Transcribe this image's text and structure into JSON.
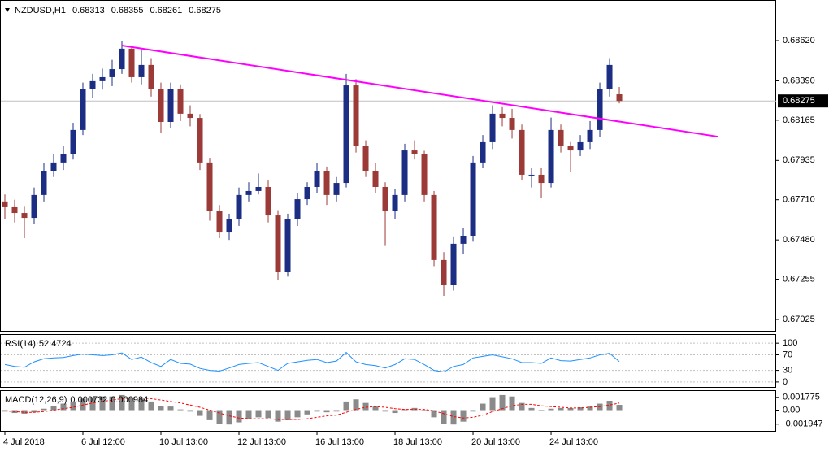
{
  "chart_data": [
    {
      "type": "candlestick",
      "symbol": "NZDUSD,H1",
      "up_color": "#1c2d84",
      "down_color": "#9b3a36",
      "candles": [
        [
          0.677,
          0.6774,
          0.676,
          0.67667
        ],
        [
          0.67667,
          0.6771,
          0.6758,
          0.67634
        ],
        [
          0.67634,
          0.6767,
          0.6749,
          0.67606
        ],
        [
          0.67606,
          0.6778,
          0.6757,
          0.67737
        ],
        [
          0.67737,
          0.6792,
          0.677,
          0.67876
        ],
        [
          0.67876,
          0.6797,
          0.6784,
          0.67923
        ],
        [
          0.67923,
          0.6802,
          0.6788,
          0.67969
        ],
        [
          0.67969,
          0.6815,
          0.6794,
          0.68109
        ],
        [
          0.68109,
          0.6838,
          0.6808,
          0.68341
        ],
        [
          0.68341,
          0.6843,
          0.6829,
          0.68388
        ],
        [
          0.68388,
          0.6846,
          0.6834,
          0.68411
        ],
        [
          0.68411,
          0.6851,
          0.6836,
          0.68457
        ],
        [
          0.68457,
          0.6862,
          0.6843,
          0.68574
        ],
        [
          0.68574,
          0.6859,
          0.6838,
          0.68411
        ],
        [
          0.68411,
          0.6857,
          0.6837,
          0.68481
        ],
        [
          0.68481,
          0.6852,
          0.683,
          0.68341
        ],
        [
          0.68341,
          0.6838,
          0.6809,
          0.68155
        ],
        [
          0.68155,
          0.6838,
          0.6812,
          0.68341
        ],
        [
          0.68341,
          0.6837,
          0.6816,
          0.68202
        ],
        [
          0.68202,
          0.6825,
          0.6813,
          0.68178
        ],
        [
          0.68178,
          0.682,
          0.6788,
          0.67923
        ],
        [
          0.67923,
          0.6795,
          0.6759,
          0.67644
        ],
        [
          0.67644,
          0.6768,
          0.6749,
          0.67527
        ],
        [
          0.67527,
          0.6763,
          0.6748,
          0.67597
        ],
        [
          0.67597,
          0.6778,
          0.6756,
          0.67737
        ],
        [
          0.67737,
          0.6781,
          0.677,
          0.6776
        ],
        [
          0.6776,
          0.6786,
          0.6774,
          0.67783
        ],
        [
          0.67783,
          0.6782,
          0.6758,
          0.6762
        ],
        [
          0.6762,
          0.6765,
          0.6725,
          0.67295
        ],
        [
          0.67295,
          0.6763,
          0.6727,
          0.67597
        ],
        [
          0.67597,
          0.6775,
          0.6756,
          0.67713
        ],
        [
          0.67713,
          0.6781,
          0.6768,
          0.67783
        ],
        [
          0.67783,
          0.6792,
          0.6775,
          0.67876
        ],
        [
          0.67876,
          0.679,
          0.6768,
          0.67737
        ],
        [
          0.67737,
          0.6784,
          0.677,
          0.67806
        ],
        [
          0.67806,
          0.6843,
          0.6778,
          0.68364
        ],
        [
          0.68364,
          0.684,
          0.6798,
          0.68016
        ],
        [
          0.68016,
          0.6805,
          0.6784,
          0.67876
        ],
        [
          0.67876,
          0.6792,
          0.6775,
          0.67783
        ],
        [
          0.67783,
          0.6781,
          0.6745,
          0.67644
        ],
        [
          0.67644,
          0.6777,
          0.676,
          0.67737
        ],
        [
          0.67737,
          0.6803,
          0.677,
          0.67992
        ],
        [
          0.67992,
          0.6805,
          0.6794,
          0.67969
        ],
        [
          0.67969,
          0.6799,
          0.677,
          0.67737
        ],
        [
          0.67737,
          0.6776,
          0.6733,
          0.67365
        ],
        [
          0.67365,
          0.6741,
          0.6716,
          0.67225
        ],
        [
          0.67225,
          0.675,
          0.6719,
          0.67458
        ],
        [
          0.67458,
          0.6755,
          0.674,
          0.67504
        ],
        [
          0.67504,
          0.6796,
          0.6747,
          0.67923
        ],
        [
          0.67923,
          0.6808,
          0.6789,
          0.68039
        ],
        [
          0.68039,
          0.6825,
          0.68,
          0.68202
        ],
        [
          0.68202,
          0.6824,
          0.6813,
          0.68178
        ],
        [
          0.68178,
          0.6823,
          0.6806,
          0.68109
        ],
        [
          0.68109,
          0.6814,
          0.6782,
          0.67853
        ],
        [
          0.67853,
          0.6789,
          0.6778,
          0.67853
        ],
        [
          0.67853,
          0.6789,
          0.6772,
          0.67806
        ],
        [
          0.67806,
          0.6818,
          0.6778,
          0.68109
        ],
        [
          0.68109,
          0.6814,
          0.6798,
          0.68016
        ],
        [
          0.68016,
          0.6804,
          0.6787,
          0.67992
        ],
        [
          0.67992,
          0.6808,
          0.6796,
          0.68039
        ],
        [
          0.68039,
          0.6816,
          0.68,
          0.68109
        ],
        [
          0.68109,
          0.6838,
          0.6807,
          0.68341
        ],
        [
          0.68341,
          0.6852,
          0.683,
          0.68481
        ],
        [
          0.68313,
          0.68355,
          0.68261,
          0.68275
        ]
      ],
      "ylim": [
        0.669553,
        0.688525
      ],
      "yticks": [
        {
          "value": 0.6862,
          "label": "0.68620"
        },
        {
          "value": 0.6839,
          "label": "0.68390"
        },
        0.68165,
        0.67935,
        {
          "value": 0.6771,
          "label": "0.67710"
        },
        {
          "value": 0.6748,
          "label": "0.67480"
        },
        0.67255,
        0.67025
      ],
      "xlim": [
        -0.5,
        79.08
      ],
      "xticks": [
        {
          "value": 0,
          "label": "4 Jul 2018"
        },
        {
          "value": 8,
          "label": "6 Jul 12:00"
        },
        {
          "value": 16,
          "label": "10 Jul 13:00"
        },
        {
          "value": 24,
          "label": "12 Jul 13:00"
        },
        {
          "value": 32,
          "label": "16 Jul 13:00"
        },
        {
          "value": 40,
          "label": "18 Jul 13:00"
        },
        {
          "value": 48,
          "label": "20 Jul 13:00"
        },
        {
          "value": 56,
          "label": "24 Jul 13:00"
        }
      ],
      "trendline": {
        "x": [
          12,
          73.1
        ],
        "y": [
          0.68592,
          0.68071
        ],
        "color": "#ff00ff"
      }
    },
    {
      "type": "line",
      "title": "RSI(14)",
      "color": "#1e90ff",
      "values": [
        45,
        40,
        38,
        52,
        60,
        62,
        63,
        68,
        72,
        70,
        68,
        70,
        75,
        58,
        64,
        50,
        40,
        58,
        48,
        46,
        35,
        30,
        28,
        36,
        45,
        48,
        50,
        40,
        30,
        48,
        52,
        56,
        58,
        50,
        54,
        76,
        52,
        45,
        42,
        36,
        45,
        60,
        58,
        45,
        30,
        26,
        40,
        45,
        62,
        66,
        70,
        65,
        60,
        50,
        50,
        48,
        62,
        55,
        54,
        58,
        62,
        70,
        74,
        52.4724
      ],
      "ylim": [
        -14.9,
        123.4
      ],
      "yticks": [
        100,
        70,
        30,
        0
      ]
    },
    {
      "type": "macd",
      "title": "MACD(12,26,9)",
      "macd": {
        "color": "#8a8a8a",
        "values": [
          -0.0002,
          -0.0004,
          -0.0005,
          -0.0003,
          0.0002,
          0.0006,
          0.0009,
          0.0012,
          0.0016,
          0.0018,
          0.0019,
          0.0019,
          0.0021,
          0.0018,
          0.0016,
          0.0012,
          0.0006,
          0.0005,
          0.0001,
          -0.0002,
          -0.0008,
          -0.0014,
          -0.0019,
          -0.002,
          -0.0017,
          -0.0013,
          -0.001,
          -0.0011,
          -0.0016,
          -0.0014,
          -0.001,
          -0.0006,
          -0.0002,
          -0.0003,
          -0.0002,
          0.0012,
          0.0015,
          0.001,
          0.0005,
          -0.0002,
          -0.0004,
          0.0001,
          0.0003,
          -0.0001,
          -0.001,
          -0.0019,
          -0.002,
          -0.0016,
          -0.0002,
          0.0009,
          0.0018,
          0.0021,
          0.0019,
          0.001,
          0.0003,
          -0.0001,
          0.0002,
          0.0003,
          0.0003,
          0.0004,
          0.0005,
          0.0009,
          0.0013,
          0.000732
        ]
      },
      "signal": {
        "color": "#ff0000",
        "values": [
          -0.0001,
          -0.0002,
          -0.0003,
          -0.0003,
          -0.0002,
          0,
          0.0002,
          0.0004,
          0.0007,
          0.001,
          0.0012,
          0.0014,
          0.0016,
          0.0017,
          0.0017,
          0.0016,
          0.0014,
          0.0012,
          0.001,
          0.0007,
          0.0004,
          0,
          -0.0004,
          -0.0008,
          -0.0011,
          -0.0012,
          -0.0012,
          -0.0012,
          -0.0013,
          -0.0013,
          -0.0013,
          -0.0012,
          -0.001,
          -0.0008,
          -0.0007,
          -0.0003,
          0.0001,
          0.0004,
          0.0005,
          0.0004,
          0.0002,
          0.0001,
          0.0001,
          0.0001,
          -0.0001,
          -0.0005,
          -0.0009,
          -0.0011,
          -0.001,
          -0.0007,
          -0.0002,
          0.0002,
          0.0006,
          0.0008,
          0.0008,
          0.0006,
          0.0005,
          0.0004,
          0.0003,
          0.0003,
          0.0004,
          0.0005,
          0.0007,
          0.000984
        ]
      },
      "ylim": [
        -0.00288,
        0.00277
      ],
      "yticks": [
        0.001775,
        {
          "value": 0,
          "label": "0.00"
        },
        -0.001947
      ]
    }
  ]
}
